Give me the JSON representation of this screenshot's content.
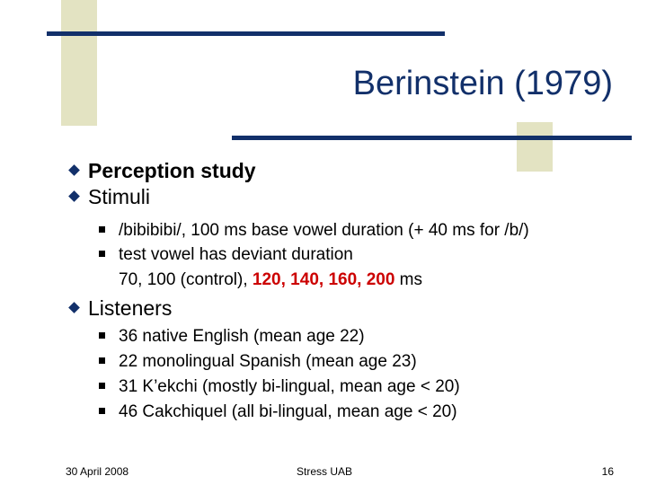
{
  "slide": {
    "title": "Berinstein (1979)",
    "bullets": {
      "perception": "Perception study",
      "stimuli": "Stimuli",
      "stimuli_sub1": "/bibibibi/, 100 ms base vowel duration (+ 40 ms for /b/)",
      "stimuli_sub2": "test vowel has deviant duration",
      "stimuli_sub2_cont_a": "70, 100 (control), ",
      "stimuli_sub2_cont_red": "120, 140, 160, 200",
      "stimuli_sub2_cont_b": " ms",
      "listeners": "Listeners",
      "listeners_sub": [
        "36 native English (mean age 22)",
        "22 monolingual Spanish (mean age 23)",
        "31 K’ekchi (mostly bi-lingual, mean age < 20)",
        "46 Cakchiquel (all bi-lingual, mean age < 20)"
      ]
    },
    "footer": {
      "date": "30 April 2008",
      "center": "Stress UAB",
      "page": "16"
    }
  },
  "colors": {
    "accent_navy": "#12306a",
    "deco_beige": "#e3e3c2",
    "highlight_red": "#cc0000"
  }
}
